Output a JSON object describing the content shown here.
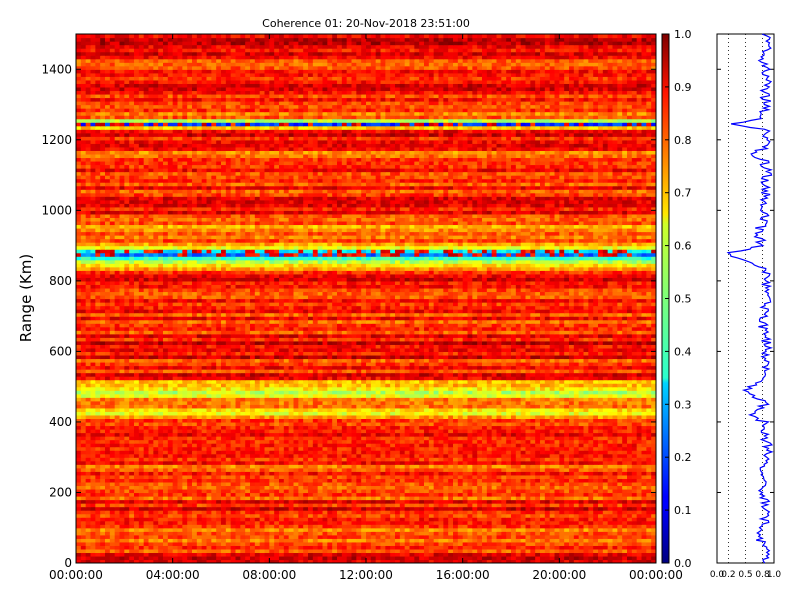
{
  "chart_data": {
    "type": "heatmap",
    "title": "Coherence 01: 20-Nov-2018 23:51:00",
    "ylabel": "Range (Km)",
    "xlabel": "",
    "x_tick_labels": [
      "00:00:00",
      "04:00:00",
      "08:00:00",
      "12:00:00",
      "16:00:00",
      "20:00:00",
      "00:00:00"
    ],
    "x_range_hours": [
      0,
      24
    ],
    "y_ticks": [
      0,
      200,
      400,
      600,
      800,
      1000,
      1200,
      1400
    ],
    "ylim": [
      0,
      1500
    ],
    "colorbar": {
      "ticks": [
        "0.0",
        "0.1",
        "0.2",
        "0.3",
        "0.4",
        "0.5",
        "0.6",
        "0.7",
        "0.8",
        "0.9",
        "1.0"
      ],
      "range": [
        0,
        1
      ],
      "colormap": "jet"
    },
    "profile_panel": {
      "xlim": [
        0,
        1
      ],
      "x_tick_labels": [
        "0.0",
        "0.2",
        "0.5",
        "0.8",
        "1.0"
      ],
      "x_tick_values": [
        0.0,
        0.2,
        0.5,
        0.8,
        1.0
      ],
      "grid": true,
      "line_color": "#0000ff"
    },
    "range_profile": {
      "range_km": [
        0,
        40,
        70,
        100,
        130,
        150,
        180,
        210,
        240,
        260,
        300,
        330,
        360,
        400,
        420,
        450,
        490,
        500,
        530,
        560,
        600,
        640,
        680,
        720,
        760,
        800,
        830,
        870,
        880,
        900,
        940,
        980,
        1000,
        1040,
        1080,
        1100,
        1140,
        1160,
        1180,
        1200,
        1230,
        1245,
        1260,
        1300,
        1340,
        1380,
        1420,
        1460,
        1490
      ],
      "coherence": [
        0.88,
        0.85,
        0.72,
        0.82,
        0.86,
        0.88,
        0.84,
        0.78,
        0.85,
        0.8,
        0.86,
        0.9,
        0.84,
        0.82,
        0.6,
        0.84,
        0.55,
        0.62,
        0.86,
        0.83,
        0.88,
        0.85,
        0.8,
        0.86,
        0.84,
        0.88,
        0.86,
        0.3,
        0.28,
        0.8,
        0.72,
        0.85,
        0.82,
        0.86,
        0.84,
        0.88,
        0.82,
        0.65,
        0.86,
        0.84,
        0.85,
        0.2,
        0.78,
        0.86,
        0.84,
        0.87,
        0.82,
        0.86,
        0.88
      ]
    }
  }
}
